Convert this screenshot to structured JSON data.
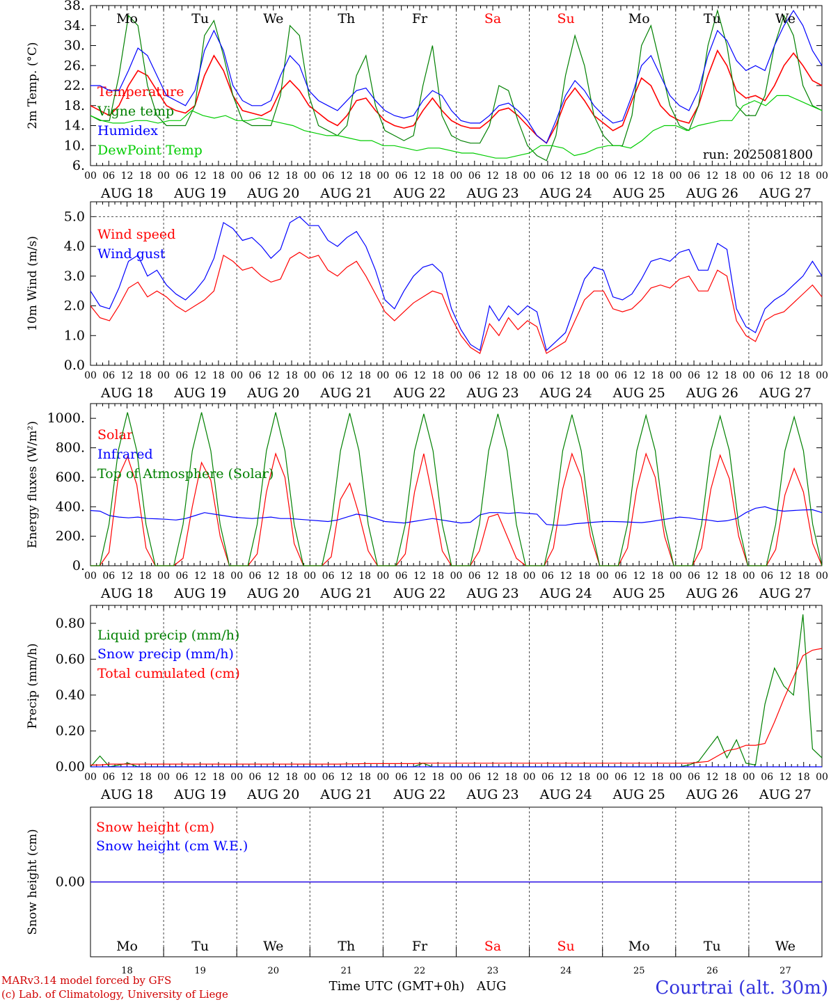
{
  "chart_data": [
    {
      "type": "line",
      "ylabel": "2m Temp. (°C)",
      "ylim": [
        6,
        38
      ],
      "yticks": [
        "6.",
        "10.",
        "14.",
        "18.",
        "22.",
        "26.",
        "30.",
        "34.",
        "38."
      ],
      "annotation": "run: 2025081800",
      "series": [
        {
          "name": "Temperature",
          "color": "#ff0000",
          "values": [
            18,
            17,
            16,
            18,
            22,
            25,
            24,
            21,
            18,
            17,
            16.5,
            18,
            24,
            28,
            25,
            20,
            17,
            16.5,
            16,
            17,
            21,
            23,
            21,
            18,
            16.5,
            15,
            14,
            16,
            19,
            19.5,
            17,
            15,
            14,
            13.5,
            14,
            17,
            19.5,
            17,
            15,
            14,
            13.5,
            13.5,
            15,
            17,
            17.5,
            16,
            14,
            12,
            10.5,
            14,
            19,
            21.5,
            19,
            16,
            14.5,
            13,
            14,
            19,
            23.5,
            22,
            18,
            16,
            15,
            14.5,
            18,
            24,
            29,
            26,
            21,
            19.5,
            20,
            19,
            22,
            26,
            28.5,
            26,
            23,
            22
          ]
        },
        {
          "name": "Vigne temp",
          "color": "#008000",
          "values": [
            16,
            15,
            15,
            24,
            36,
            34,
            22,
            16,
            14,
            14,
            14,
            18,
            32,
            35,
            28,
            20,
            15,
            14,
            14,
            14,
            20,
            34,
            32,
            20,
            14,
            13,
            12,
            14,
            24,
            28,
            18,
            13,
            12,
            11,
            12,
            22,
            30,
            16,
            12,
            11,
            10.5,
            10.5,
            14,
            22,
            21,
            15,
            10,
            8,
            7,
            12,
            24,
            32,
            26,
            16,
            12,
            10,
            10,
            16,
            30,
            34,
            26,
            18,
            14,
            13,
            18,
            30,
            37,
            30,
            18,
            16,
            16,
            20,
            30,
            36,
            32,
            22,
            18,
            17
          ]
        },
        {
          "name": "Humidex",
          "color": "#0000ff",
          "values": [
            22,
            22,
            21,
            21,
            25,
            29.5,
            28,
            24,
            20,
            19,
            18,
            21,
            29,
            33,
            29,
            22,
            19,
            18,
            18,
            19,
            24,
            28,
            26,
            21,
            19,
            18,
            17,
            19,
            21,
            21.5,
            19,
            17,
            16,
            15.5,
            16,
            19,
            21,
            20,
            17,
            15,
            14.5,
            14.5,
            16,
            18,
            18.5,
            17,
            15,
            12,
            10.5,
            15,
            20,
            23,
            21,
            18,
            16,
            14.5,
            15,
            20,
            26,
            28,
            24,
            20,
            18,
            17,
            21,
            28,
            33,
            31,
            27,
            25,
            26,
            25,
            30,
            34,
            37,
            34,
            29,
            26
          ]
        },
        {
          "name": "DewPoint Temp",
          "color": "#00cc00",
          "values": [
            16,
            15,
            14.5,
            14.5,
            15,
            15,
            14.5,
            15,
            15,
            17,
            16,
            15.5,
            16,
            15,
            15,
            15.5,
            15,
            14.5,
            14,
            13,
            12.5,
            12,
            12,
            11.5,
            11,
            11,
            10,
            10,
            9.5,
            9,
            9.5,
            9.5,
            9,
            8.5,
            8.5,
            8,
            7.5,
            7.5,
            8,
            8.5,
            10,
            10,
            9.5,
            8,
            8.5,
            9.5,
            10,
            10,
            9.5,
            11,
            13,
            14,
            14,
            13,
            14,
            14.5,
            15,
            15,
            18,
            19,
            18,
            20,
            20,
            19,
            18,
            17
          ]
        }
      ]
    },
    {
      "type": "line",
      "ylabel": "10m Wind (m/s)",
      "ylim": [
        0,
        5.5
      ],
      "yticks": [
        "0.0",
        "1.0",
        "2.0",
        "3.0",
        "4.0",
        "5.0"
      ],
      "series": [
        {
          "name": "Wind speed",
          "color": "#ff0000",
          "values": [
            2.0,
            1.6,
            1.5,
            2.0,
            2.6,
            2.8,
            2.3,
            2.5,
            2.3,
            2.0,
            1.8,
            2.0,
            2.2,
            2.5,
            3.7,
            3.5,
            3.2,
            3.3,
            3.0,
            2.8,
            2.9,
            3.6,
            3.8,
            3.6,
            3.7,
            3.2,
            3.0,
            3.3,
            3.5,
            3.0,
            2.4,
            1.8,
            1.5,
            1.8,
            2.1,
            2.3,
            2.5,
            2.4,
            1.6,
            1.0,
            0.6,
            0.4,
            1.4,
            1.0,
            1.6,
            1.2,
            1.5,
            1.3,
            0.4,
            0.6,
            0.8,
            1.5,
            2.2,
            2.5,
            2.5,
            1.9,
            1.8,
            1.9,
            2.2,
            2.6,
            2.7,
            2.6,
            2.9,
            3.0,
            2.5,
            2.5,
            3.2,
            3.0,
            1.5,
            1.0,
            0.8,
            1.5,
            1.7,
            1.8,
            2.1,
            2.4,
            2.7,
            2.3
          ]
        },
        {
          "name": "Wind gust",
          "color": "#0000ff",
          "values": [
            2.5,
            2.0,
            1.9,
            2.6,
            3.5,
            3.7,
            3.0,
            3.2,
            2.7,
            2.4,
            2.2,
            2.5,
            2.9,
            3.6,
            4.8,
            4.6,
            4.2,
            4.3,
            4.0,
            3.6,
            3.9,
            4.8,
            5.0,
            4.7,
            4.7,
            4.2,
            4.0,
            4.3,
            4.5,
            4.0,
            3.2,
            2.2,
            1.9,
            2.5,
            3.0,
            3.3,
            3.4,
            3.1,
            1.9,
            1.2,
            0.7,
            0.5,
            2.0,
            1.5,
            2.0,
            1.7,
            2.0,
            1.8,
            0.5,
            0.8,
            1.1,
            2.0,
            2.9,
            3.3,
            3.2,
            2.3,
            2.2,
            2.4,
            2.9,
            3.5,
            3.6,
            3.5,
            3.8,
            3.9,
            3.2,
            3.2,
            4.1,
            3.9,
            1.9,
            1.3,
            1.1,
            1.9,
            2.2,
            2.4,
            2.7,
            3.0,
            3.5,
            3.0
          ]
        }
      ]
    },
    {
      "type": "line",
      "ylabel": "Energy fluxes (W/m²)",
      "ylim": [
        0,
        1100
      ],
      "yticks": [
        "0.",
        "200.",
        "400.",
        "600.",
        "800.",
        "1000."
      ],
      "series": [
        {
          "name": "Solar",
          "color": "#ff0000",
          "values": [
            0,
            0,
            90,
            600,
            740,
            550,
            120,
            0,
            0,
            0,
            50,
            400,
            700,
            580,
            200,
            0,
            0,
            0,
            80,
            500,
            760,
            600,
            150,
            0,
            0,
            0,
            60,
            450,
            560,
            350,
            100,
            0,
            0,
            0,
            80,
            500,
            760,
            450,
            100,
            0,
            0,
            0,
            100,
            330,
            350,
            200,
            50,
            0,
            0,
            0,
            120,
            520,
            760,
            600,
            200,
            0,
            0,
            0,
            120,
            520,
            760,
            600,
            200,
            0,
            0,
            0,
            120,
            520,
            750,
            590,
            200,
            0,
            0,
            0,
            110,
            480,
            660,
            500,
            150,
            0
          ]
        },
        {
          "name": "Infrared",
          "color": "#0000ff",
          "values": [
            375,
            370,
            340,
            330,
            325,
            330,
            320,
            318,
            315,
            310,
            320,
            340,
            360,
            350,
            340,
            330,
            325,
            320,
            325,
            330,
            320,
            320,
            315,
            310,
            305,
            300,
            310,
            330,
            350,
            340,
            320,
            300,
            295,
            290,
            300,
            310,
            320,
            310,
            300,
            290,
            295,
            345,
            360,
            360,
            355,
            360,
            355,
            350,
            280,
            275,
            275,
            285,
            290,
            295,
            300,
            300,
            298,
            295,
            292,
            300,
            310,
            320,
            330,
            325,
            315,
            310,
            300,
            305,
            320,
            360,
            390,
            400,
            380,
            370,
            375,
            378,
            380,
            360
          ]
        },
        {
          "name": "Top of Atmosphere (Solar)",
          "color": "#008000",
          "values": [
            0,
            0,
            280,
            780,
            1040,
            780,
            280,
            0,
            0,
            0,
            280,
            780,
            1040,
            780,
            280,
            0,
            0,
            0,
            280,
            780,
            1040,
            780,
            280,
            0,
            0,
            0,
            280,
            780,
            1035,
            780,
            280,
            0,
            0,
            0,
            280,
            780,
            1030,
            780,
            280,
            0,
            0,
            0,
            280,
            780,
            1030,
            780,
            280,
            0,
            0,
            0,
            280,
            780,
            1025,
            780,
            280,
            0,
            0,
            0,
            280,
            780,
            1020,
            780,
            280,
            0,
            0,
            0,
            280,
            780,
            1015,
            780,
            280,
            0,
            0,
            0,
            280,
            780,
            1010,
            780,
            280,
            0
          ]
        }
      ]
    },
    {
      "type": "line",
      "ylabel": "Precip (mm/h)",
      "ylim": [
        0,
        0.9
      ],
      "yticks": [
        "0.00",
        "0.20",
        "0.40",
        "0.60",
        "0.80"
      ],
      "series": [
        {
          "name": "Liquid precip (mm/h)",
          "color": "#008000",
          "values": [
            0,
            0.06,
            0,
            0.01,
            0.02,
            0,
            0,
            0,
            0,
            0,
            0,
            0,
            0,
            0,
            0,
            0,
            0,
            0,
            0,
            0,
            0,
            0,
            0,
            0,
            0,
            0,
            0,
            0,
            0,
            0,
            0,
            0,
            0,
            0,
            0,
            0.02,
            0,
            0,
            0,
            0,
            0,
            0,
            0,
            0,
            0,
            0,
            0,
            0,
            0,
            0,
            0,
            0,
            0,
            0,
            0,
            0,
            0,
            0,
            0,
            0,
            0,
            0,
            0,
            0.01,
            0.03,
            0.1,
            0.17,
            0.05,
            0.15,
            0.02,
            0.01,
            0.35,
            0.55,
            0.45,
            0.4,
            0.85,
            0.1,
            0.05
          ]
        },
        {
          "name": "Snow precip (mm/h)",
          "color": "#0000ff",
          "values": [
            0,
            0,
            0,
            0,
            0,
            0,
            0,
            0,
            0,
            0,
            0,
            0,
            0,
            0,
            0,
            0,
            0,
            0,
            0,
            0,
            0,
            0,
            0,
            0,
            0,
            0,
            0,
            0,
            0,
            0,
            0,
            0,
            0,
            0,
            0,
            0,
            0,
            0,
            0,
            0,
            0,
            0,
            0,
            0,
            0,
            0,
            0,
            0,
            0,
            0,
            0,
            0,
            0,
            0,
            0,
            0,
            0,
            0,
            0,
            0,
            0,
            0,
            0,
            0,
            0,
            0,
            0,
            0,
            0,
            0,
            0,
            0,
            0,
            0,
            0,
            0,
            0,
            0
          ]
        },
        {
          "name": "Total cumulated (cm)",
          "color": "#ff0000",
          "values": [
            0.01,
            0.01,
            0.015,
            0.015,
            0.015,
            0.015,
            0.015,
            0.015,
            0.015,
            0.015,
            0.015,
            0.015,
            0.015,
            0.015,
            0.015,
            0.015,
            0.015,
            0.015,
            0.015,
            0.015,
            0.015,
            0.015,
            0.015,
            0.015,
            0.015,
            0.015,
            0.015,
            0.016,
            0.017,
            0.018,
            0.018,
            0.018,
            0.018,
            0.018,
            0.018,
            0.02,
            0.02,
            0.02,
            0.02,
            0.02,
            0.02,
            0.02,
            0.02,
            0.02,
            0.02,
            0.02,
            0.02,
            0.02,
            0.02,
            0.02,
            0.02,
            0.02,
            0.02,
            0.02,
            0.02,
            0.02,
            0.02,
            0.02,
            0.02,
            0.02,
            0.02,
            0.02,
            0.02,
            0.02,
            0.025,
            0.03,
            0.06,
            0.09,
            0.1,
            0.12,
            0.12,
            0.13,
            0.25,
            0.38,
            0.5,
            0.62,
            0.65,
            0.66
          ]
        }
      ]
    },
    {
      "type": "line",
      "ylabel": "Snow height (cm)",
      "ylim": [
        -1,
        1
      ],
      "yticks": [
        "0.00"
      ],
      "series": [
        {
          "name": "Snow height (cm)",
          "color": "#ff0000",
          "values": [
            0,
            0
          ]
        },
        {
          "name": "Snow height (cm W.E.)",
          "color": "#0000ff",
          "values": [
            0,
            0
          ]
        }
      ]
    }
  ],
  "axes": {
    "hour_ticks": [
      "00",
      "06",
      "12",
      "18"
    ],
    "final_tick": "00",
    "dates": [
      "AUG 18",
      "AUG 19",
      "AUG 20",
      "AUG 21",
      "AUG 22",
      "AUG 23",
      "AUG 24",
      "AUG 25",
      "AUG 26",
      "AUG 27"
    ],
    "weekdays": [
      "Mo",
      "Tu",
      "We",
      "Th",
      "Fr",
      "Sa",
      "Su",
      "Mo",
      "Tu",
      "We"
    ],
    "weekend_color": "#ff0000",
    "weekday_color": "#000000",
    "day_numbers": [
      "18",
      "19",
      "20",
      "21",
      "22",
      "23",
      "24",
      "25",
      "26",
      "27"
    ]
  },
  "footer": {
    "model": "MARv3.14 model forced by GFS",
    "lab": "(c) Lab. of Climatology, University of Liege",
    "time_axis": "Time UTC (GMT+0h)",
    "month": "AUG",
    "station": "Courtrai (alt. 30m)"
  }
}
